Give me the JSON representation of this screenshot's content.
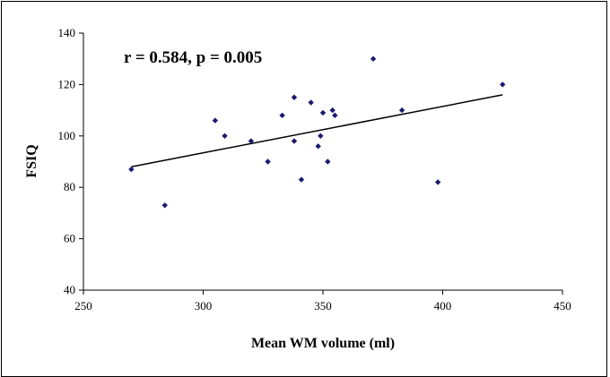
{
  "chart_data": {
    "type": "scatter",
    "xlabel": "Mean WM volume (ml)",
    "ylabel": "FSIQ",
    "xlim": [
      250,
      450
    ],
    "ylim": [
      40,
      140
    ],
    "x_ticks": [
      250,
      300,
      350,
      400,
      450
    ],
    "y_ticks": [
      40,
      60,
      80,
      100,
      120,
      140
    ],
    "grid": false,
    "legend": "none",
    "annotation": "r = 0.584, p = 0.005",
    "marker_color": "#1a1a6e",
    "trendline_color": "#000000",
    "series": [
      {
        "points": [
          {
            "x": 270,
            "y": 87
          },
          {
            "x": 284,
            "y": 73
          },
          {
            "x": 305,
            "y": 106
          },
          {
            "x": 309,
            "y": 100
          },
          {
            "x": 320,
            "y": 98
          },
          {
            "x": 327,
            "y": 90
          },
          {
            "x": 333,
            "y": 108
          },
          {
            "x": 338,
            "y": 115
          },
          {
            "x": 338,
            "y": 98
          },
          {
            "x": 341,
            "y": 83
          },
          {
            "x": 345,
            "y": 113
          },
          {
            "x": 348,
            "y": 96
          },
          {
            "x": 349,
            "y": 100
          },
          {
            "x": 350,
            "y": 109
          },
          {
            "x": 352,
            "y": 90
          },
          {
            "x": 354,
            "y": 110
          },
          {
            "x": 355,
            "y": 108
          },
          {
            "x": 371,
            "y": 130
          },
          {
            "x": 383,
            "y": 110
          },
          {
            "x": 398,
            "y": 82
          },
          {
            "x": 425,
            "y": 120
          }
        ]
      }
    ],
    "trendline": {
      "type": "linear",
      "points": [
        {
          "x": 270,
          "y": 88
        },
        {
          "x": 425,
          "y": 116
        }
      ]
    }
  }
}
